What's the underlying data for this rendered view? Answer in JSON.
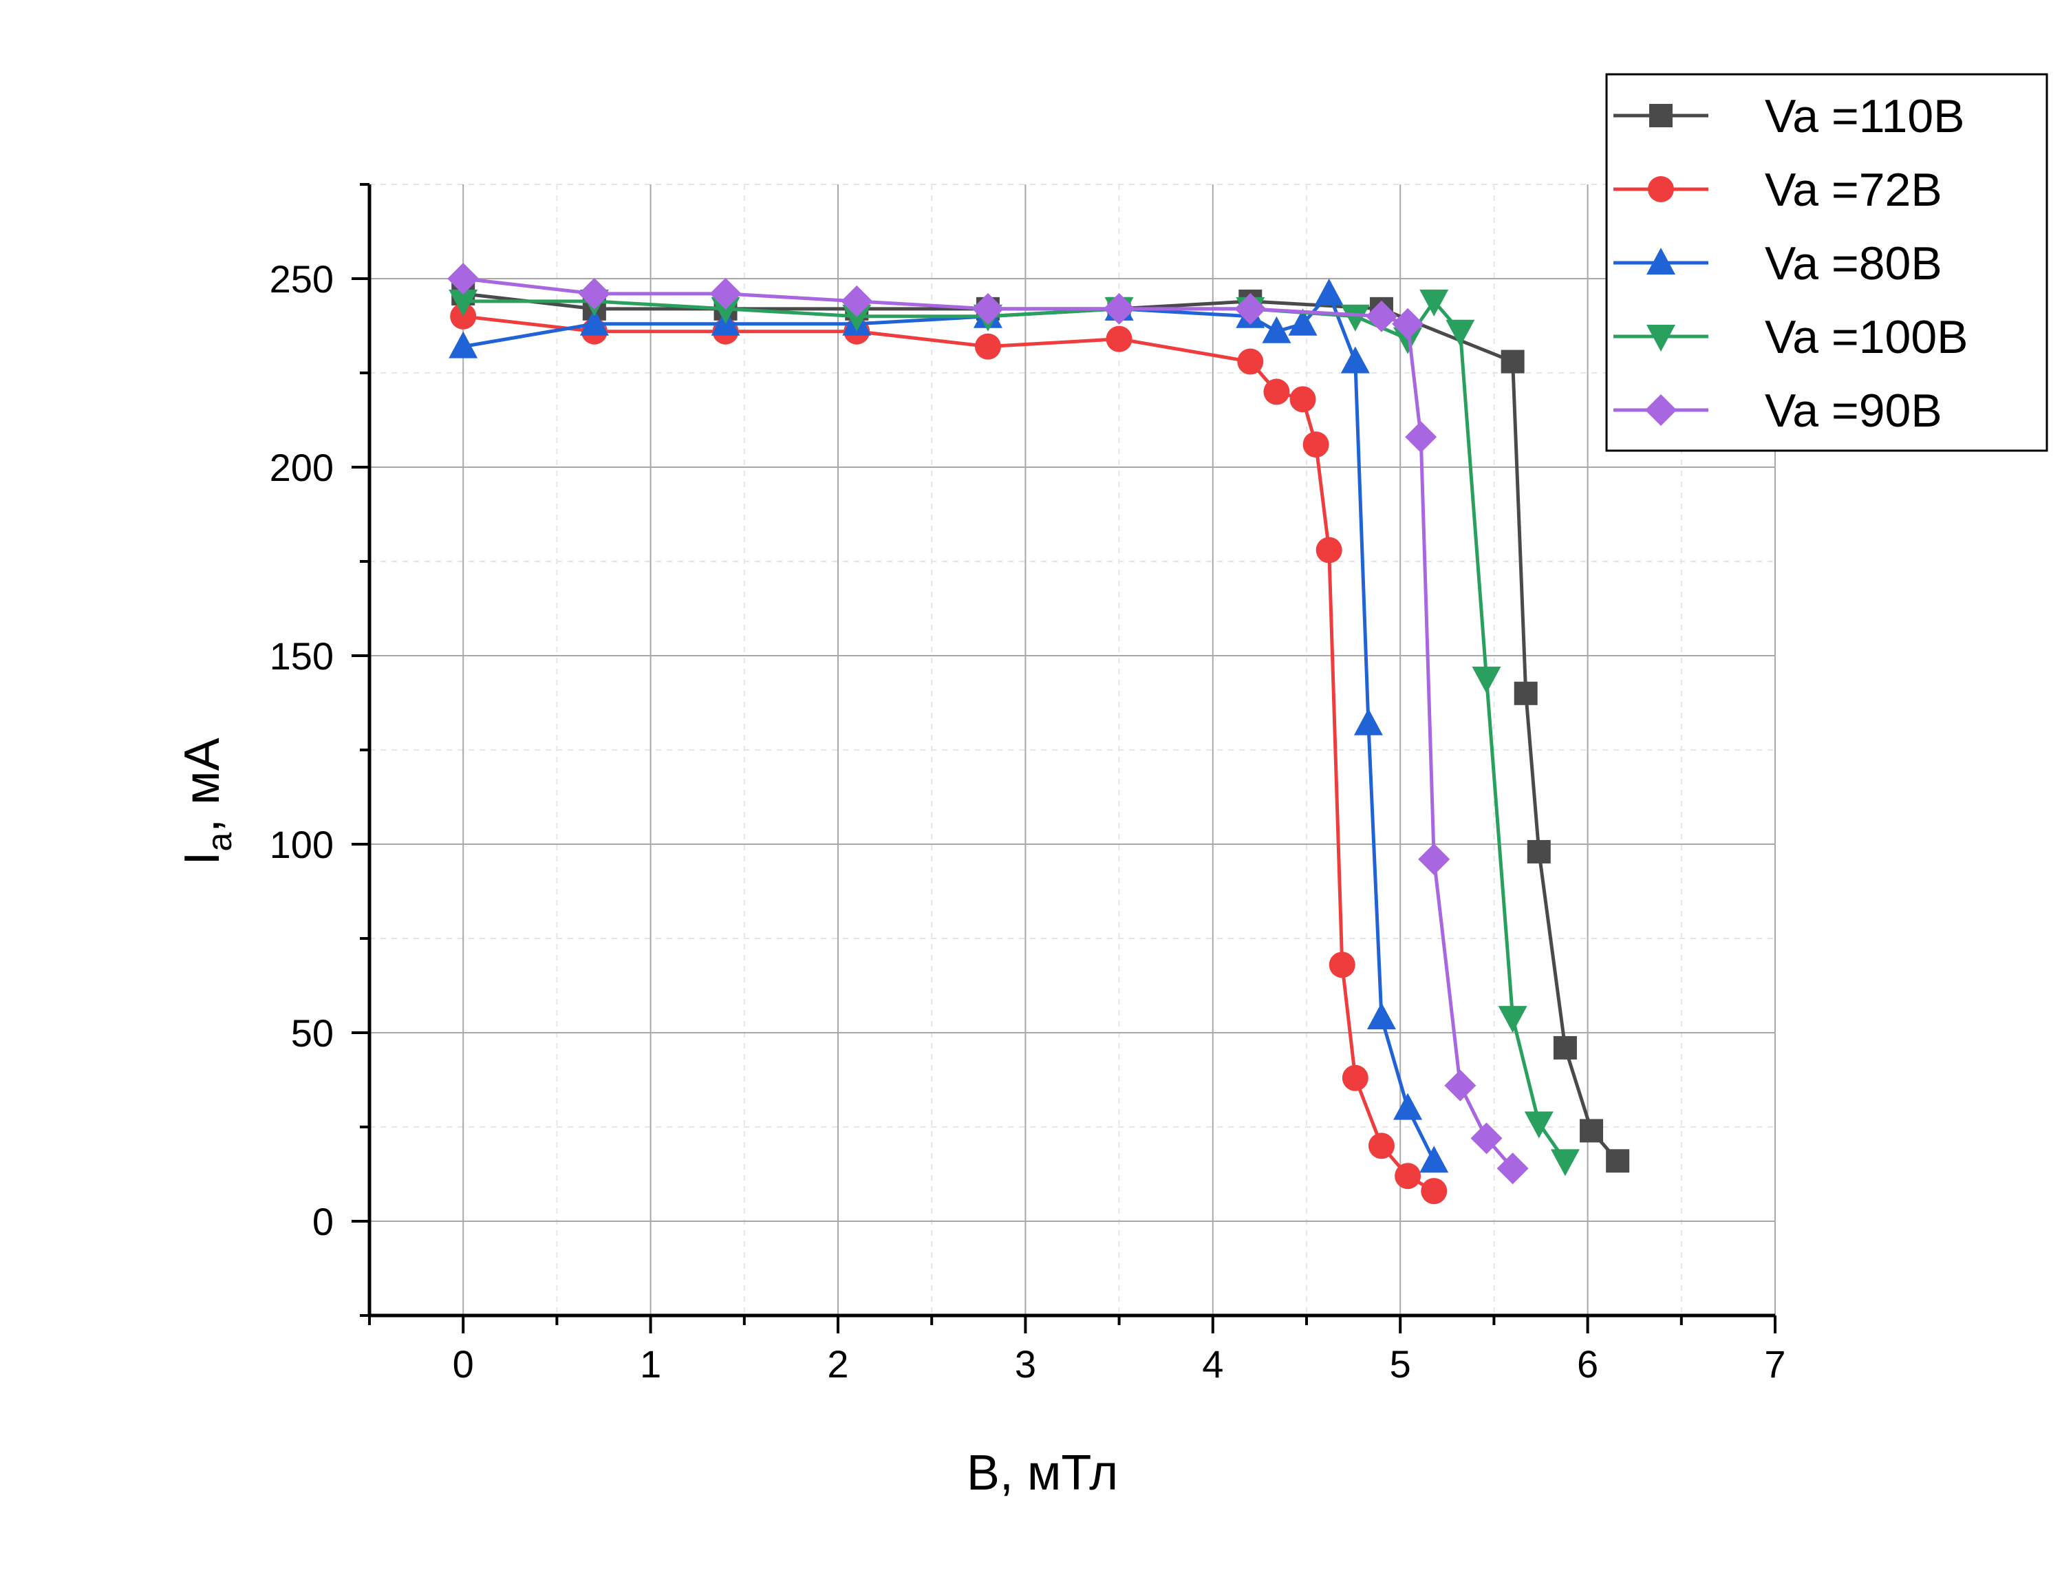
{
  "chart_data": {
    "type": "line",
    "xlabel": "B, мТл",
    "ylabel_main": "I",
    "ylabel_sub": "a",
    "ylabel_rest": ", мА",
    "xlim": [
      -0.5,
      7
    ],
    "ylim": [
      -25,
      275
    ],
    "xticks": [
      0,
      1,
      2,
      3,
      4,
      5,
      6,
      7
    ],
    "yticks": [
      0,
      50,
      100,
      150,
      200,
      250
    ],
    "grid": true,
    "legend_position": "top-right",
    "series": [
      {
        "name": "Va =110В",
        "color": "#4a4a4a",
        "marker": "square",
        "x": [
          0,
          0.7,
          1.4,
          2.1,
          2.8,
          3.5,
          4.2,
          4.9,
          5.6,
          5.67,
          5.74,
          5.88,
          6.02,
          6.16
        ],
        "y": [
          246,
          242,
          242,
          242,
          242,
          242,
          244,
          242,
          228,
          140,
          98,
          46,
          24,
          16
        ]
      },
      {
        "name": "Va =72В",
        "color": "#ef3d3d",
        "marker": "circle",
        "x": [
          0,
          0.7,
          1.4,
          2.1,
          2.8,
          3.5,
          4.2,
          4.34,
          4.48,
          4.55,
          4.62,
          4.69,
          4.76,
          4.9,
          5.04,
          5.18
        ],
        "y": [
          240,
          236,
          236,
          236,
          232,
          234,
          228,
          220,
          218,
          206,
          178,
          68,
          38,
          20,
          12,
          8
        ]
      },
      {
        "name": "Va =80В",
        "color": "#1f63d6",
        "marker": "triangle-up",
        "x": [
          0,
          0.7,
          1.4,
          2.1,
          2.8,
          3.5,
          4.2,
          4.34,
          4.48,
          4.62,
          4.76,
          4.83,
          4.9,
          5.04,
          5.18
        ],
        "y": [
          232,
          238,
          238,
          238,
          240,
          242,
          240,
          236,
          238,
          246,
          228,
          132,
          54,
          30,
          16
        ]
      },
      {
        "name": "Va =100В",
        "color": "#2aa05f",
        "marker": "triangle-down",
        "x": [
          0,
          0.7,
          1.4,
          2.1,
          2.8,
          3.5,
          4.2,
          4.76,
          5.04,
          5.18,
          5.32,
          5.46,
          5.6,
          5.74,
          5.88
        ],
        "y": [
          244,
          244,
          242,
          240,
          240,
          242,
          242,
          240,
          234,
          244,
          236,
          144,
          54,
          26,
          16
        ]
      },
      {
        "name": "Va =90В",
        "color": "#a866e0",
        "marker": "diamond",
        "x": [
          0,
          0.7,
          1.4,
          2.1,
          2.8,
          3.5,
          4.2,
          4.9,
          5.04,
          5.11,
          5.18,
          5.32,
          5.46,
          5.6
        ],
        "y": [
          250,
          246,
          246,
          244,
          242,
          242,
          242,
          240,
          238,
          208,
          96,
          36,
          22,
          14
        ]
      }
    ]
  }
}
